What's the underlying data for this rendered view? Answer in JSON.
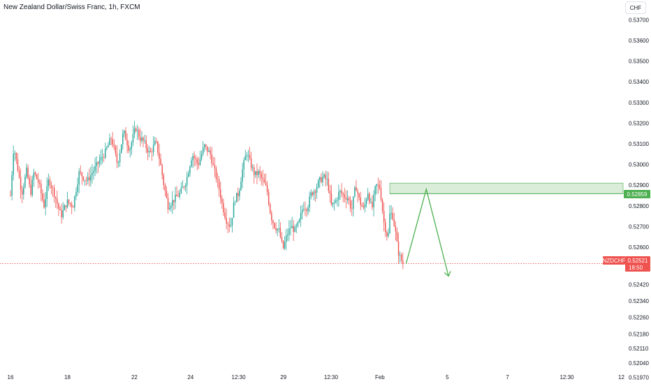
{
  "header": {
    "title": "New Zealand Dollar/Swiss Franc, 1h, FXCM",
    "currency_button": "CHF"
  },
  "chart_data": {
    "type": "candlestick",
    "title": "New Zealand Dollar/Swiss Franc, 1h, FXCM",
    "ylim": [
      0.51955,
      0.53745
    ],
    "y_ticks": [
      "0.53700",
      "0.53600",
      "0.53500",
      "0.53400",
      "0.53300",
      "0.53200",
      "0.53100",
      "0.53000",
      "0.52900",
      "0.52800",
      "0.52700",
      "0.52600",
      "0.52420",
      "0.52340",
      "0.52260",
      "0.52180",
      "0.52110",
      "0.52040",
      "0.51970"
    ],
    "y_tick_values": [
      0.537,
      0.536,
      0.535,
      0.534,
      0.533,
      0.532,
      0.531,
      0.53,
      0.529,
      0.528,
      0.527,
      0.526,
      0.5242,
      0.5234,
      0.5226,
      0.5218,
      0.5211,
      0.5204,
      0.5197
    ],
    "x_ticks": [
      {
        "label": "16",
        "t": 0.0
      },
      {
        "label": "18",
        "t": 0.141
      },
      {
        "label": "22",
        "t": 0.307
      },
      {
        "label": "24",
        "t": 0.446
      },
      {
        "label": "12:30",
        "t": 0.565
      },
      {
        "label": "29",
        "t": 0.676
      },
      {
        "label": "12:30",
        "t": 0.794
      },
      {
        "label": "Feb",
        "t": 0.915
      },
      {
        "label": "5",
        "t": 1.082
      },
      {
        "label": "7",
        "t": 1.231
      },
      {
        "label": "12:30",
        "t": 1.378
      },
      {
        "label": "12",
        "t": 1.513
      }
    ],
    "path_points": [
      [
        0.0,
        0.5285
      ],
      [
        0.008,
        0.5309
      ],
      [
        0.018,
        0.5298
      ],
      [
        0.028,
        0.5286
      ],
      [
        0.04,
        0.5297
      ],
      [
        0.05,
        0.5286
      ],
      [
        0.058,
        0.5296
      ],
      [
        0.07,
        0.5291
      ],
      [
        0.083,
        0.528
      ],
      [
        0.095,
        0.5293
      ],
      [
        0.11,
        0.5285
      ],
      [
        0.125,
        0.5275
      ],
      [
        0.14,
        0.5282
      ],
      [
        0.155,
        0.528
      ],
      [
        0.17,
        0.5296
      ],
      [
        0.19,
        0.5292
      ],
      [
        0.215,
        0.53
      ],
      [
        0.235,
        0.5306
      ],
      [
        0.25,
        0.5313
      ],
      [
        0.265,
        0.53
      ],
      [
        0.28,
        0.5316
      ],
      [
        0.295,
        0.5307
      ],
      [
        0.31,
        0.5318
      ],
      [
        0.32,
        0.5313
      ],
      [
        0.33,
        0.5311
      ],
      [
        0.345,
        0.5305
      ],
      [
        0.36,
        0.5311
      ],
      [
        0.37,
        0.5302
      ],
      [
        0.38,
        0.529
      ],
      [
        0.39,
        0.528
      ],
      [
        0.405,
        0.5283
      ],
      [
        0.42,
        0.5286
      ],
      [
        0.435,
        0.5292
      ],
      [
        0.45,
        0.5305
      ],
      [
        0.465,
        0.53
      ],
      [
        0.48,
        0.5309
      ],
      [
        0.495,
        0.5305
      ],
      [
        0.505,
        0.5297
      ],
      [
        0.515,
        0.529
      ],
      [
        0.525,
        0.528
      ],
      [
        0.535,
        0.5273
      ],
      [
        0.545,
        0.527
      ],
      [
        0.555,
        0.5283
      ],
      [
        0.565,
        0.5286
      ],
      [
        0.575,
        0.5298
      ],
      [
        0.585,
        0.5306
      ],
      [
        0.595,
        0.53
      ],
      [
        0.605,
        0.5295
      ],
      [
        0.615,
        0.5296
      ],
      [
        0.625,
        0.5292
      ],
      [
        0.635,
        0.5288
      ],
      [
        0.645,
        0.5275
      ],
      [
        0.655,
        0.527
      ],
      [
        0.665,
        0.5268
      ],
      [
        0.675,
        0.5259
      ],
      [
        0.685,
        0.5266
      ],
      [
        0.695,
        0.527
      ],
      [
        0.705,
        0.5268
      ],
      [
        0.715,
        0.5272
      ],
      [
        0.725,
        0.528
      ],
      [
        0.735,
        0.5279
      ],
      [
        0.745,
        0.5286
      ],
      [
        0.755,
        0.5288
      ],
      [
        0.765,
        0.5292
      ],
      [
        0.775,
        0.5294
      ],
      [
        0.785,
        0.5292
      ],
      [
        0.795,
        0.528
      ],
      [
        0.805,
        0.5282
      ],
      [
        0.815,
        0.5287
      ],
      [
        0.825,
        0.5285
      ],
      [
        0.835,
        0.5284
      ],
      [
        0.845,
        0.5278
      ],
      [
        0.855,
        0.529
      ],
      [
        0.865,
        0.5282
      ],
      [
        0.875,
        0.5278
      ],
      [
        0.885,
        0.5287
      ],
      [
        0.895,
        0.5278
      ],
      [
        0.905,
        0.529
      ],
      [
        0.915,
        0.5289
      ],
      [
        0.925,
        0.5272
      ],
      [
        0.935,
        0.5264
      ],
      [
        0.94,
        0.5277
      ],
      [
        0.947,
        0.5275
      ],
      [
        0.953,
        0.5268
      ],
      [
        0.96,
        0.5258
      ],
      [
        0.965,
        0.5255
      ],
      [
        0.97,
        0.5253
      ],
      [
        0.972,
        0.52521
      ]
    ],
    "zone": {
      "top": 0.5291,
      "bottom": 0.52859
    },
    "projection": [
      [
        0.98,
        0.52521
      ],
      [
        1.03,
        0.5288
      ],
      [
        1.085,
        0.5246
      ]
    ],
    "current_price": 0.52521,
    "colors": {
      "up": "#26a69a",
      "down": "#ef5350",
      "zone": "#cfe9cf",
      "zone_line": "#4caf50",
      "projection": "#4caf50",
      "price_line": "#ef5350"
    }
  },
  "price_badges": {
    "zone_price": "0.52859",
    "symbol": "NZDCHF",
    "current_price": "0.52521",
    "countdown": "18:50"
  }
}
